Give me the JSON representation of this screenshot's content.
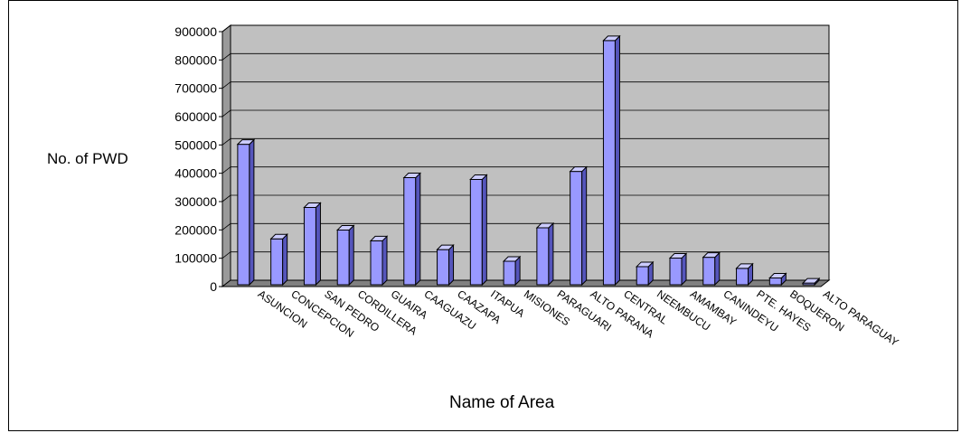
{
  "chart_data": {
    "type": "bar",
    "title": "",
    "xlabel": "Name of Area",
    "ylabel": "No. of PWD",
    "categories": [
      "ASUNCION",
      "CONCEPCION",
      "SAN PEDRO",
      "CORDILLERA",
      "GUAIRA",
      "CAAGUAZU",
      "CAAZAPA",
      "ITAPUA",
      "MISIONES",
      "PARAGUARI",
      "ALTO PARANA",
      "CENTRAL",
      "NEEMBUCU",
      "AMAMBAY",
      "CANINDEYU",
      "PTE. HAYES",
      "BOQUERON",
      "ALTO PARAGUAY"
    ],
    "values": [
      496000,
      162000,
      273000,
      193000,
      155000,
      378000,
      124000,
      372000,
      83000,
      201000,
      400000,
      862000,
      64000,
      94000,
      97000,
      58000,
      24000,
      6000
    ],
    "ylim": [
      0,
      900000
    ],
    "yticks": [
      "900000",
      "800000",
      "700000",
      "600000",
      "500000",
      "400000",
      "300000",
      "200000",
      "100000",
      "0"
    ],
    "grid": true,
    "legend": "none",
    "colors": {
      "bar_front": "#9999ff",
      "bar_side": "#5555bb",
      "bar_top": "#ccccff",
      "plot_bg": "#c0c0c0",
      "wall_side": "#9a9a9a",
      "floor": "#808080"
    }
  }
}
